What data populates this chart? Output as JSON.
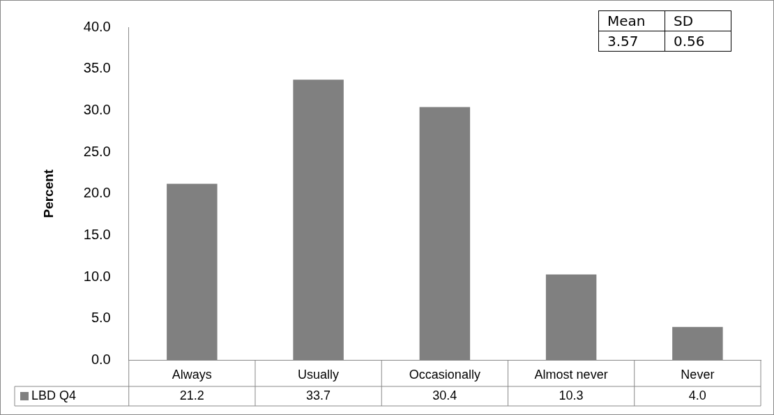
{
  "chart_data": {
    "type": "bar",
    "ylabel": "Percent",
    "categories": [
      "Always",
      "Usually",
      "Occasionally",
      "Almost never",
      "Never"
    ],
    "series": [
      {
        "name": "LBD Q4",
        "color": "#808080",
        "values": [
          21.2,
          33.7,
          30.4,
          10.3,
          4.0
        ],
        "value_labels": [
          "21.2",
          "33.7",
          "30.4",
          "10.3",
          "4.0"
        ]
      }
    ],
    "ylim": [
      0,
      40
    ],
    "yticks": [
      {
        "value": 0,
        "label": "0.0"
      },
      {
        "value": 5,
        "label": "5.0"
      },
      {
        "value": 10,
        "label": "10.0"
      },
      {
        "value": 15,
        "label": "15.0"
      },
      {
        "value": 20,
        "label": "20.0"
      },
      {
        "value": 25,
        "label": "25.0"
      },
      {
        "value": 30,
        "label": "30.0"
      },
      {
        "value": 35,
        "label": "35.0"
      },
      {
        "value": 40,
        "label": "40.0"
      }
    ],
    "legend": "bottom",
    "annotations": [
      "Mean",
      "SD",
      "3.57",
      "0.56"
    ]
  }
}
